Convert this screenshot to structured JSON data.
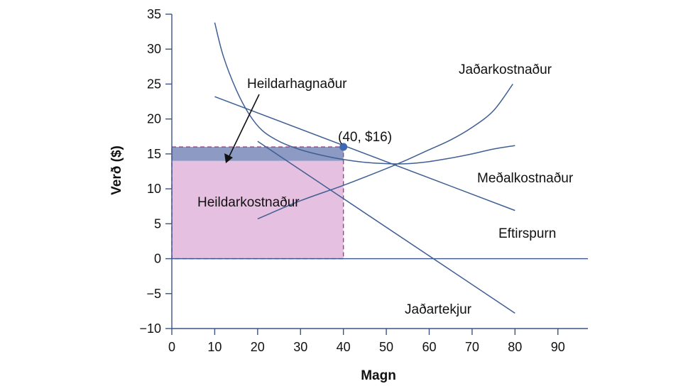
{
  "chart_data": {
    "type": "line",
    "xlabel": "Magn",
    "ylabel": "Verð ($)",
    "xlim": [
      0,
      97
    ],
    "ylim": [
      -10,
      35
    ],
    "xticks": [
      0,
      10,
      20,
      30,
      40,
      50,
      60,
      70,
      80,
      90
    ],
    "yticks": [
      35,
      30,
      25,
      20,
      15,
      10,
      5,
      0,
      -5,
      -10
    ],
    "ytick_labels": [
      "35",
      "30",
      "25",
      "20",
      "15",
      "10",
      "5",
      "0",
      "−5",
      "−10"
    ],
    "series": [
      {
        "name": "Jaðarkostnaður",
        "points": [
          [
            20,
            5.7
          ],
          [
            30,
            8.3
          ],
          [
            40,
            10.5
          ],
          [
            50,
            12.9
          ],
          [
            55,
            14.2
          ],
          [
            60,
            15.6
          ],
          [
            65,
            17.0
          ],
          [
            70,
            18.8
          ],
          [
            75,
            21.2
          ],
          [
            79.5,
            25.0
          ]
        ]
      },
      {
        "name": "Meðalkostnaður",
        "points": [
          [
            10,
            33.8
          ],
          [
            12,
            29.0
          ],
          [
            15,
            24.2
          ],
          [
            18,
            20.7
          ],
          [
            21,
            18.4
          ],
          [
            25,
            16.8
          ],
          [
            30,
            15.6
          ],
          [
            35,
            14.8
          ],
          [
            40,
            14.2
          ],
          [
            45,
            13.8
          ],
          [
            50,
            13.6
          ],
          [
            55,
            13.6
          ],
          [
            60,
            13.9
          ],
          [
            65,
            14.4
          ],
          [
            70,
            15.0
          ],
          [
            75,
            15.7
          ],
          [
            80,
            16.2
          ]
        ]
      },
      {
        "name": "Eftirspurn",
        "points": [
          [
            10,
            23.2
          ],
          [
            80,
            6.9
          ]
        ]
      },
      {
        "name": "Jaðartekjur",
        "points": [
          [
            20,
            16.8
          ],
          [
            80,
            -7.8
          ]
        ]
      }
    ],
    "shaded_regions": [
      {
        "label": "Heildarhagnaður",
        "x": [
          0,
          40
        ],
        "y": [
          14,
          16
        ],
        "color": "#8d9bc4"
      },
      {
        "label": "Heildarkostnaður",
        "x": [
          0,
          40
        ],
        "y": [
          0,
          14
        ],
        "color": "#e6c0e0"
      }
    ],
    "highlight_point": {
      "x": 40,
      "y": 16,
      "label": "(40, $16)"
    },
    "curve_labels": {
      "mc": "Jaðarkostnaður",
      "ac": "Meðalkostnaður",
      "demand": "Eftirspurn",
      "mr": "Jaðartekjur"
    },
    "annotations": {
      "profit": "Heildarhagnaður",
      "cost": "Heildarkostnaður"
    },
    "colors": {
      "curve": "#3f5f93",
      "axis": "#3a5487",
      "dashed_border": "#9b3f91",
      "point": "#3f66b0"
    },
    "grid": false
  }
}
